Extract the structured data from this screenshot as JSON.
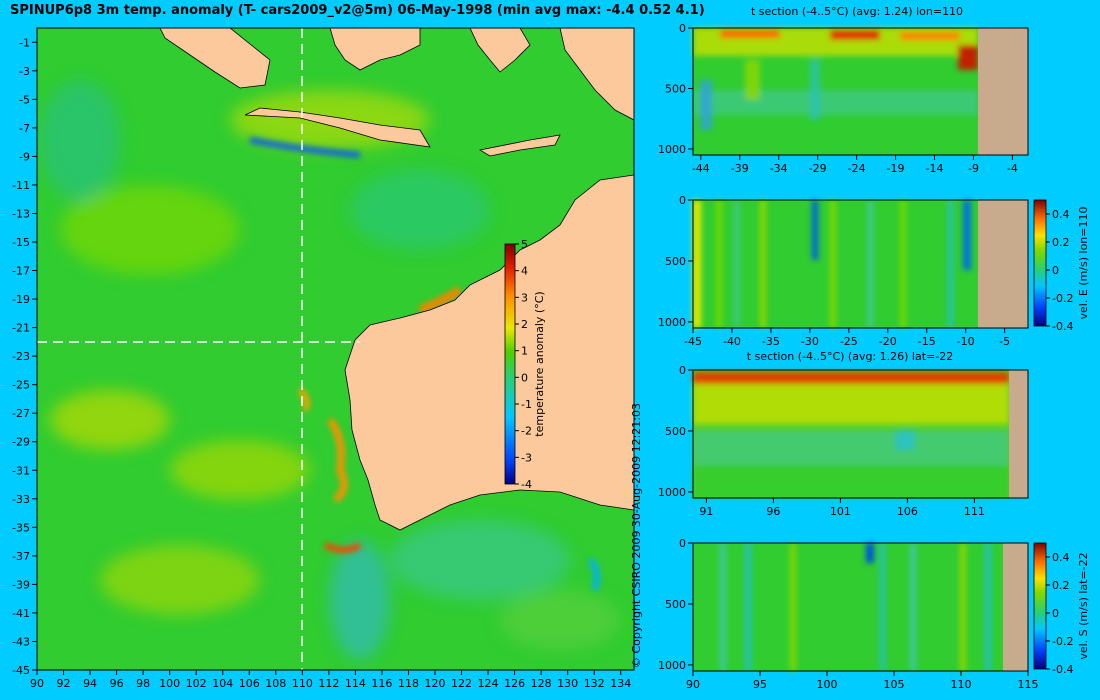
{
  "title": "SPINUP6p8 3m temp. anomaly (T- cars2009_v2@5m) 06-May-1998 (min avg max: -4.4 0.52 4.1)",
  "copyright": "© Copyright CSIRO 2009   30-Aug-2009 12:21:03",
  "colors": {
    "background": "#00ccff",
    "land": "#fcc99c",
    "land_section": "#c8aa8c"
  },
  "chart_data": [
    {
      "type": "heatmap",
      "name": "map",
      "xlabel": "",
      "ylabel": "",
      "x_ticks": [
        "90",
        "92",
        "94",
        "96",
        "98",
        "100",
        "102",
        "104",
        "106",
        "108",
        "110",
        "112",
        "114",
        "116",
        "118",
        "120",
        "122",
        "124",
        "126",
        "128",
        "130",
        "132",
        "134"
      ],
      "y_ticks": [
        "-1",
        "-3",
        "-5",
        "-7",
        "-9",
        "-11",
        "-13",
        "-15",
        "-17",
        "-19",
        "-21",
        "-23",
        "-25",
        "-27",
        "-29",
        "-31",
        "-33",
        "-35",
        "-37",
        "-39",
        "-41",
        "-43",
        "-45"
      ],
      "xlim": [
        90,
        135
      ],
      "ylim": [
        -45,
        0
      ],
      "crosshair": {
        "lon": 110,
        "lat": -22
      },
      "colorbar": {
        "label": "temperature anomaly (°C)",
        "range": [
          -4,
          5
        ],
        "ticks": [
          "5",
          "4",
          "3",
          "2",
          "1",
          "0",
          "-1",
          "-2",
          "-3",
          "-4"
        ]
      }
    },
    {
      "type": "heatmap",
      "name": "t-section-lon",
      "title": "t section (-4..5°C) (avg: 1.24) lon=110",
      "x_ticks": [
        "-44",
        "-39",
        "-34",
        "-29",
        "-24",
        "-19",
        "-14",
        "-9",
        "-4"
      ],
      "y_ticks": [
        "0",
        "500",
        "1000"
      ],
      "xlim": [
        -45,
        -2
      ],
      "ylim": [
        1050,
        0
      ]
    },
    {
      "type": "heatmap",
      "name": "vel-e-section",
      "x_ticks": [
        "-45",
        "-40",
        "-35",
        "-30",
        "-25",
        "-20",
        "-15",
        "-10",
        "-5"
      ],
      "y_ticks": [
        "0",
        "500",
        "1000"
      ],
      "xlim": [
        -45,
        -2
      ],
      "ylim": [
        1050,
        0
      ],
      "colorbar": {
        "label": "vel. E (m/s) lon=110",
        "range": [
          -0.4,
          0.5
        ],
        "ticks": [
          "0.4",
          "0.2",
          "0",
          "-0.2",
          "-0.4"
        ]
      }
    },
    {
      "type": "heatmap",
      "name": "t-section-lat",
      "title": "t section (-4..5°C) (avg: 1.26) lat=-22",
      "x_ticks": [
        "91",
        "96",
        "101",
        "106",
        "111"
      ],
      "y_ticks": [
        "0",
        "500",
        "1000"
      ],
      "xlim": [
        90,
        115
      ],
      "ylim": [
        1050,
        0
      ]
    },
    {
      "type": "heatmap",
      "name": "vel-s-section",
      "x_ticks": [
        "90",
        "95",
        "100",
        "105",
        "110",
        "115"
      ],
      "y_ticks": [
        "0",
        "500",
        "1000"
      ],
      "xlim": [
        90,
        115
      ],
      "ylim": [
        1050,
        0
      ],
      "colorbar": {
        "label": "vel. S (m/s) lat=-22",
        "range": [
          -0.4,
          0.5
        ],
        "ticks": [
          "0.4",
          "0.2",
          "0",
          "-0.2",
          "-0.4"
        ]
      }
    }
  ]
}
